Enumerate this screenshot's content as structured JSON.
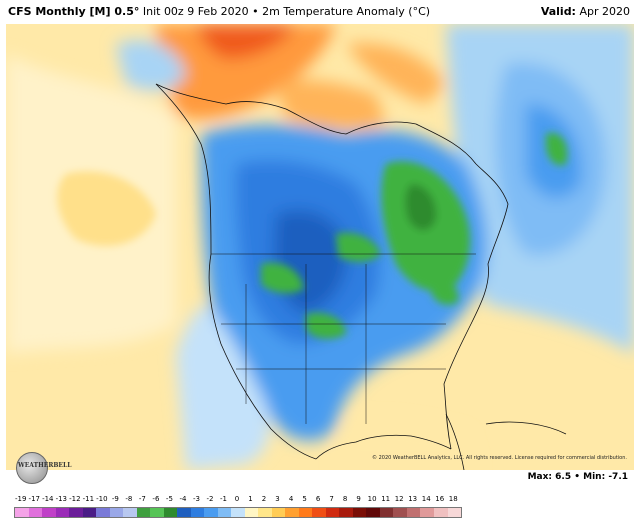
{
  "header": {
    "title_bold": "CFS Monthly [M] 0.5°",
    "title_rest": " Init 00z 9 Feb 2020 • 2m Temperature Anomaly (°C)",
    "valid_label": "Valid:",
    "valid_value": " Apr 2020"
  },
  "footer": {
    "logo_text": "WEATHERBELL",
    "copyright": "© 2020 WeatherBELL Analytics, LLC. All rights reserved. License required for commercial distribution.",
    "max_label": "Max:",
    "max_value": " 6.5",
    "min_label": " • Min:",
    "min_value": " -7.1"
  },
  "scale": {
    "labels": [
      "-19",
      "-17",
      "-14",
      "-13",
      "-12",
      "-11",
      "-10",
      "-9",
      "-8",
      "-7",
      "-6",
      "-5",
      "-4",
      "-3",
      "-2",
      "-1",
      "0",
      "1",
      "2",
      "3",
      "4",
      "5",
      "6",
      "7",
      "8",
      "9",
      "10",
      "11",
      "12",
      "13",
      "14",
      "16",
      "18"
    ],
    "colors": [
      "#f5a3e8",
      "#e070dc",
      "#c040c8",
      "#9b2bb8",
      "#6c1e9a",
      "#4a1c86",
      "#7a7ad8",
      "#9aa8e8",
      "#b8c8f0",
      "#3f9f3f",
      "#56c456",
      "#2e8b2e",
      "#1f5fbf",
      "#2e7de0",
      "#4a9cf0",
      "#7fbcf5",
      "#c4e2fa",
      "#fff6c4",
      "#ffe68a",
      "#ffcc55",
      "#ffa030",
      "#ff7a1a",
      "#f04e14",
      "#d02a10",
      "#a81a0c",
      "#7a0e06",
      "#600808",
      "#803030",
      "#a05050",
      "#c07070",
      "#e09a9a",
      "#f0c0c0",
      "#f7d8d8"
    ]
  },
  "colors": {
    "warm_light": "#ffe9a8",
    "warm_orange": "#ff9a3c",
    "cool_light": "#a8d4f5",
    "cool_mid": "#4a9cf0",
    "cool_deep": "#2066d0",
    "green": "#3fb23f"
  }
}
